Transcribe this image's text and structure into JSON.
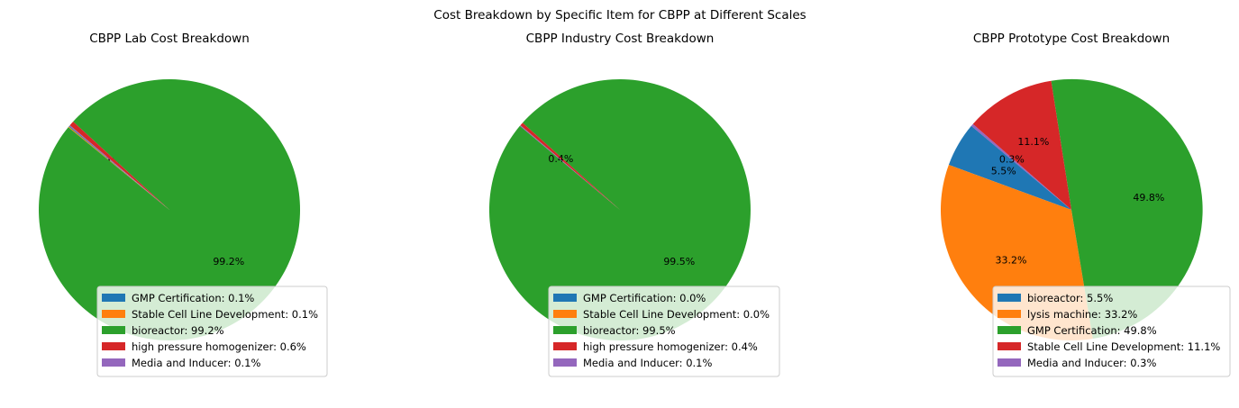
{
  "suptitle": "Cost Breakdown by Specific Item for CBPP at Different Scales",
  "chart_data": [
    {
      "type": "pie",
      "title": "CBPP Lab Cost Breakdown",
      "start_angle_deg": 140,
      "direction": "counterclockwise",
      "legend_position": "lower-right",
      "slices": [
        {
          "label": "GMP Certification",
          "value": 0.1,
          "pct_label": "0.1%",
          "legend": "GMP Certification: 0.1%",
          "color": "#1f77b4"
        },
        {
          "label": "Stable Cell Line Development",
          "value": 0.1,
          "pct_label": "0.1%",
          "legend": "Stable Cell Line Development: 0.1%",
          "color": "#ff7f0e"
        },
        {
          "label": "bioreactor",
          "value": 99.2,
          "pct_label": "99.2%",
          "legend": "bioreactor: 99.2%",
          "color": "#2ca02c"
        },
        {
          "label": "high pressure homogenizer",
          "value": 0.6,
          "pct_label": "",
          "legend": "high pressure homogenizer: 0.6%",
          "color": "#d62728"
        },
        {
          "label": "Media and Inducer",
          "value": 0.1,
          "pct_label": "",
          "legend": "Media and Inducer: 0.1%",
          "color": "#9467bd"
        }
      ]
    },
    {
      "type": "pie",
      "title": "CBPP Industry Cost Breakdown",
      "start_angle_deg": 140,
      "direction": "counterclockwise",
      "legend_position": "lower-right",
      "slices": [
        {
          "label": "GMP Certification",
          "value": 0.0,
          "pct_label": "0.0%",
          "legend": "GMP Certification: 0.0%",
          "color": "#1f77b4"
        },
        {
          "label": "Stable Cell Line Development",
          "value": 0.0,
          "pct_label": "0.0%",
          "legend": "Stable Cell Line Development: 0.0%",
          "color": "#ff7f0e"
        },
        {
          "label": "bioreactor",
          "value": 99.5,
          "pct_label": "99.5%",
          "legend": "bioreactor: 99.5%",
          "color": "#2ca02c"
        },
        {
          "label": "high pressure homogenizer",
          "value": 0.4,
          "pct_label": "0.4%",
          "legend": "high pressure homogenizer: 0.4%",
          "color": "#d62728"
        },
        {
          "label": "Media and Inducer",
          "value": 0.1,
          "pct_label": "",
          "legend": "Media and Inducer: 0.1%",
          "color": "#9467bd"
        }
      ]
    },
    {
      "type": "pie",
      "title": "CBPP Prototype Cost Breakdown",
      "start_angle_deg": 140,
      "direction": "counterclockwise",
      "legend_position": "lower-right",
      "slices": [
        {
          "label": "bioreactor",
          "value": 5.5,
          "pct_label": "5.5%",
          "legend": "bioreactor: 5.5%",
          "color": "#1f77b4"
        },
        {
          "label": "lysis machine",
          "value": 33.2,
          "pct_label": "33.2%",
          "legend": "lysis machine: 33.2%",
          "color": "#ff7f0e"
        },
        {
          "label": "GMP Certification",
          "value": 49.8,
          "pct_label": "49.8%",
          "legend": "GMP Certification: 49.8%",
          "color": "#2ca02c"
        },
        {
          "label": "Stable Cell Line Development",
          "value": 11.1,
          "pct_label": "11.1%",
          "legend": "Stable Cell Line Development: 11.1%",
          "color": "#d62728"
        },
        {
          "label": "Media and Inducer",
          "value": 0.3,
          "pct_label": "0.3%",
          "legend": "Media and Inducer: 0.3%",
          "color": "#9467bd"
        }
      ]
    }
  ]
}
